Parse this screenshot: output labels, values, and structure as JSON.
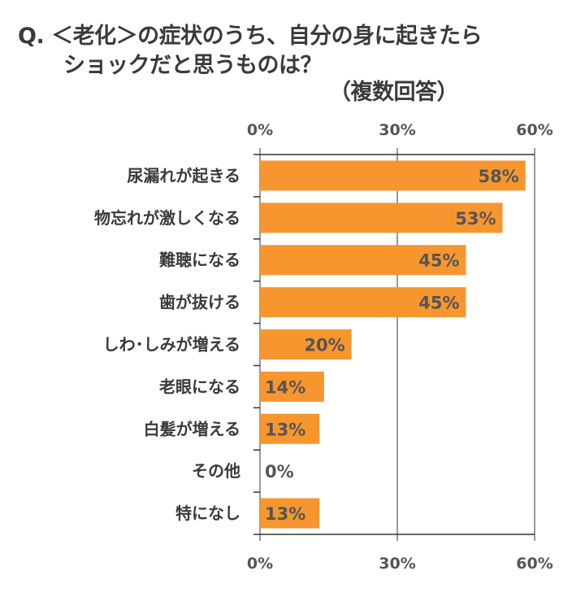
{
  "chart_data": {
    "type": "bar",
    "orientation": "horizontal",
    "title_line1": "Q. ＜老化＞の症状のうち、自分の身に起きたら",
    "title_line2": "ショックだと思うものは？",
    "subtitle": "（複数回答）",
    "categories": [
      "尿漏れが起きる",
      "物忘れが激しくなる",
      "難聴になる",
      "歯が抜ける",
      "しわ･しみが増える",
      "老眼になる",
      "白髪が増える",
      "その他",
      "特になし"
    ],
    "values": [
      58,
      53,
      45,
      45,
      20,
      14,
      13,
      0,
      13
    ],
    "data_labels": [
      "58%",
      "53%",
      "45%",
      "45%",
      "20%",
      "14%",
      "13%",
      "0%",
      "13%"
    ],
    "xlim": [
      0,
      60
    ],
    "ticks": [
      0,
      30,
      60
    ],
    "tick_labels": [
      "0%",
      "30%",
      "60%"
    ],
    "grid": true,
    "colors": {
      "bar": "#F7962F",
      "label": "#555555",
      "text": "#3a3a3a",
      "axis": "#333333"
    }
  }
}
